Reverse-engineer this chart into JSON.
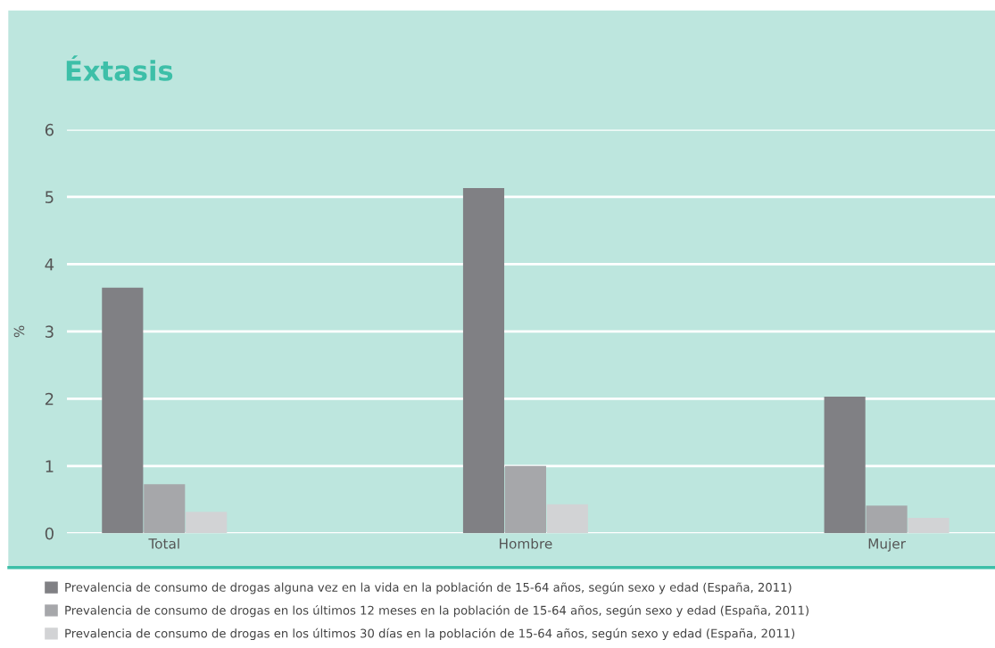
{
  "chart_data": {
    "type": "bar",
    "title": "Éxtasis",
    "ylabel": "%",
    "categories": [
      "Total",
      "Hombre",
      "Mujer"
    ],
    "series": [
      {
        "name": "Prevalencia de consumo de drogas alguna vez en la vida en la población de 15-64 años, según sexo y edad (España, 2011)",
        "color": "#808084",
        "values": [
          3.65,
          5.13,
          2.03
        ]
      },
      {
        "name": "Prevalencia de consumo de drogas en los últimos 12 meses en la población de 15-64 años, según sexo y edad (España, 2011)",
        "color": "#a6a7aa",
        "values": [
          0.73,
          1.0,
          0.41
        ]
      },
      {
        "name": "Prevalencia de consumo de drogas en los últimos 30 días en la población de 15-64 años, según sexo y edad (España, 2011)",
        "color": "#d2d3d5",
        "values": [
          0.32,
          0.43,
          0.23
        ]
      }
    ],
    "ylim": [
      0,
      6
    ],
    "yticks": [
      0,
      1,
      2,
      3,
      4,
      5,
      6
    ],
    "grid": "y",
    "legend": "bottom"
  }
}
